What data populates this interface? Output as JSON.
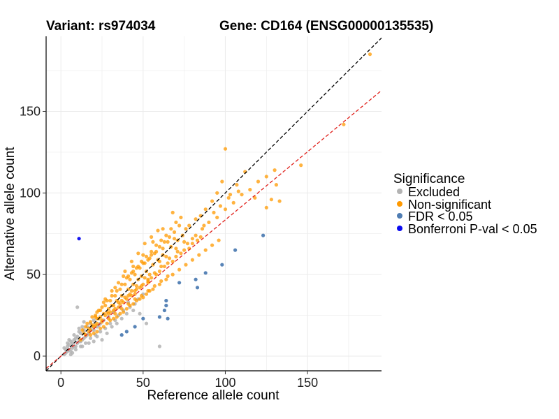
{
  "chart_data": {
    "type": "scatter",
    "title_left": "Variant: rs974034",
    "title_right": "Gene: CD164 (ENSG00000135535)",
    "xlabel": "Reference allele count",
    "ylabel": "Alternative allele count",
    "xlim": [
      -9,
      195
    ],
    "ylim": [
      -9,
      196
    ],
    "xticks": [
      0,
      50,
      100,
      150
    ],
    "yticks": [
      0,
      50,
      100,
      150
    ],
    "grid": true,
    "reference_lines": [
      {
        "name": "identity",
        "slope": 1.0,
        "intercept": 0,
        "color": "#000000",
        "dash": true
      },
      {
        "name": "fit",
        "slope": 0.835,
        "intercept": 0,
        "color": "#e0201b",
        "dash": true
      }
    ],
    "legend": {
      "title": "Significance",
      "position": "right",
      "items": [
        {
          "label": "Excluded",
          "color": "#b3b3b3"
        },
        {
          "label": "Non-significant",
          "color": "#ff9900"
        },
        {
          "label": "FDR < 0.05",
          "color": "#4f7db3"
        },
        {
          "label": "Bonferroni P-val < 0.05",
          "color": "#0a0af0"
        }
      ]
    },
    "series": [
      {
        "name": "Excluded",
        "color": "#b3b3b3",
        "points": [
          [
            2,
            1
          ],
          [
            3,
            2
          ],
          [
            4,
            3
          ],
          [
            5,
            4
          ],
          [
            6,
            3
          ],
          [
            7,
            5
          ],
          [
            8,
            6
          ],
          [
            9,
            6
          ],
          [
            10,
            8
          ],
          [
            11,
            9
          ],
          [
            12,
            9
          ],
          [
            13,
            10
          ],
          [
            14,
            11
          ],
          [
            15,
            12
          ],
          [
            16,
            13
          ],
          [
            17,
            14
          ],
          [
            18,
            16
          ],
          [
            20,
            16
          ],
          [
            22,
            18
          ],
          [
            24,
            20
          ],
          [
            3,
            4
          ],
          [
            5,
            7
          ],
          [
            7,
            8
          ],
          [
            8,
            10
          ],
          [
            10,
            12
          ],
          [
            12,
            14
          ],
          [
            14,
            16
          ],
          [
            16,
            18
          ],
          [
            18,
            20
          ],
          [
            20,
            22
          ],
          [
            6,
            1
          ],
          [
            9,
            4
          ],
          [
            12,
            6
          ],
          [
            15,
            8
          ],
          [
            18,
            11
          ],
          [
            21,
            13
          ],
          [
            24,
            15
          ],
          [
            27,
            17
          ],
          [
            30,
            20
          ],
          [
            33,
            22
          ],
          [
            4,
            6
          ],
          [
            6,
            9
          ],
          [
            9,
            11
          ],
          [
            11,
            15
          ],
          [
            13,
            18
          ],
          [
            2,
            5
          ],
          [
            5,
            10
          ],
          [
            8,
            13
          ],
          [
            11,
            17
          ],
          [
            14,
            21
          ],
          [
            4,
            8
          ],
          [
            19,
            18
          ],
          [
            23,
            19
          ],
          [
            26,
            22
          ],
          [
            29,
            24
          ],
          [
            32,
            27
          ],
          [
            35,
            25
          ],
          [
            38,
            28
          ],
          [
            42,
            30
          ],
          [
            45,
            32
          ],
          [
            10,
            30
          ],
          [
            60,
            6
          ],
          [
            52,
            20
          ],
          [
            48,
            26
          ],
          [
            28,
            14
          ],
          [
            31,
            18
          ],
          [
            34,
            20
          ],
          [
            37,
            23
          ],
          [
            40,
            26
          ],
          [
            25,
            10
          ],
          [
            17,
            8
          ],
          [
            7,
            2
          ],
          [
            13,
            6
          ],
          [
            20,
            9
          ],
          [
            22,
            12
          ],
          [
            36,
            30
          ],
          [
            41,
            33
          ],
          [
            44,
            28
          ],
          [
            47,
            35
          ],
          [
            50,
            38
          ]
        ]
      },
      {
        "name": "Non-significant",
        "color": "#ff9900",
        "points": [
          [
            12,
            10
          ],
          [
            15,
            13
          ],
          [
            18,
            16
          ],
          [
            20,
            18
          ],
          [
            22,
            20
          ],
          [
            25,
            22
          ],
          [
            27,
            25
          ],
          [
            30,
            27
          ],
          [
            32,
            28
          ],
          [
            35,
            30
          ],
          [
            38,
            33
          ],
          [
            40,
            35
          ],
          [
            43,
            37
          ],
          [
            45,
            40
          ],
          [
            48,
            42
          ],
          [
            50,
            44
          ],
          [
            53,
            46
          ],
          [
            55,
            48
          ],
          [
            58,
            50
          ],
          [
            60,
            52
          ],
          [
            63,
            55
          ],
          [
            65,
            57
          ],
          [
            68,
            58
          ],
          [
            70,
            61
          ],
          [
            73,
            63
          ],
          [
            75,
            65
          ],
          [
            78,
            66
          ],
          [
            80,
            69
          ],
          [
            83,
            71
          ],
          [
            85,
            73
          ],
          [
            15,
            18
          ],
          [
            18,
            21
          ],
          [
            21,
            24
          ],
          [
            24,
            28
          ],
          [
            27,
            31
          ],
          [
            30,
            34
          ],
          [
            33,
            37
          ],
          [
            36,
            41
          ],
          [
            39,
            44
          ],
          [
            42,
            47
          ],
          [
            45,
            50
          ],
          [
            48,
            54
          ],
          [
            51,
            57
          ],
          [
            54,
            60
          ],
          [
            57,
            63
          ],
          [
            60,
            67
          ],
          [
            63,
            70
          ],
          [
            66,
            73
          ],
          [
            69,
            76
          ],
          [
            72,
            80
          ],
          [
            20,
            14
          ],
          [
            24,
            17
          ],
          [
            28,
            20
          ],
          [
            32,
            23
          ],
          [
            36,
            26
          ],
          [
            40,
            29
          ],
          [
            44,
            32
          ],
          [
            48,
            35
          ],
          [
            52,
            38
          ],
          [
            56,
            41
          ],
          [
            60,
            44
          ],
          [
            64,
            47
          ],
          [
            68,
            50
          ],
          [
            72,
            53
          ],
          [
            76,
            56
          ],
          [
            80,
            59
          ],
          [
            84,
            62
          ],
          [
            88,
            65
          ],
          [
            92,
            68
          ],
          [
            96,
            71
          ],
          [
            14,
            14
          ],
          [
            17,
            17
          ],
          [
            19,
            19
          ],
          [
            23,
            23
          ],
          [
            26,
            26
          ],
          [
            29,
            29
          ],
          [
            31,
            31
          ],
          [
            34,
            34
          ],
          [
            37,
            37
          ],
          [
            41,
            41
          ],
          [
            44,
            44
          ],
          [
            47,
            47
          ],
          [
            49,
            49
          ],
          [
            52,
            52
          ],
          [
            56,
            56
          ],
          [
            59,
            59
          ],
          [
            62,
            62
          ],
          [
            67,
            67
          ],
          [
            71,
            71
          ],
          [
            74,
            74
          ],
          [
            16,
            20
          ],
          [
            19,
            24
          ],
          [
            22,
            27
          ],
          [
            25,
            30
          ],
          [
            28,
            34
          ],
          [
            31,
            37
          ],
          [
            34,
            40
          ],
          [
            37,
            44
          ],
          [
            40,
            48
          ],
          [
            43,
            51
          ],
          [
            46,
            54
          ],
          [
            49,
            58
          ],
          [
            52,
            61
          ],
          [
            55,
            64
          ],
          [
            58,
            68
          ],
          [
            61,
            71
          ],
          [
            64,
            74
          ],
          [
            67,
            78
          ],
          [
            70,
            82
          ],
          [
            73,
            85
          ],
          [
            13,
            16
          ],
          [
            21,
            25
          ],
          [
            26,
            33
          ],
          [
            33,
            42
          ],
          [
            38,
            49
          ],
          [
            44,
            55
          ],
          [
            50,
            62
          ],
          [
            56,
            70
          ],
          [
            62,
            78
          ],
          [
            68,
            88
          ],
          [
            36,
            32
          ],
          [
            42,
            38
          ],
          [
            46,
            41
          ],
          [
            53,
            47
          ],
          [
            57,
            51
          ],
          [
            61,
            55
          ],
          [
            66,
            60
          ],
          [
            71,
            64
          ],
          [
            77,
            69
          ],
          [
            82,
            74
          ],
          [
            86,
            78
          ],
          [
            90,
            82
          ],
          [
            95,
            85
          ],
          [
            100,
            90
          ],
          [
            105,
            94
          ],
          [
            110,
            99
          ],
          [
            115,
            102
          ],
          [
            120,
            107
          ],
          [
            125,
            110
          ],
          [
            130,
            114
          ],
          [
            18,
            13
          ],
          [
            22,
            15
          ],
          [
            26,
            18
          ],
          [
            30,
            22
          ],
          [
            34,
            24
          ],
          [
            38,
            27
          ],
          [
            42,
            31
          ],
          [
            46,
            34
          ],
          [
            50,
            36
          ],
          [
            54,
            40
          ],
          [
            23,
            28
          ],
          [
            27,
            35
          ],
          [
            31,
            40
          ],
          [
            35,
            45
          ],
          [
            39,
            52
          ],
          [
            43,
            58
          ],
          [
            47,
            63
          ],
          [
            51,
            69
          ],
          [
            55,
            73
          ],
          [
            59,
            77
          ],
          [
            29,
            23
          ],
          [
            33,
            26
          ],
          [
            37,
            29
          ],
          [
            41,
            32
          ],
          [
            45,
            35
          ],
          [
            49,
            37
          ],
          [
            53,
            40
          ],
          [
            57,
            43
          ],
          [
            61,
            46
          ],
          [
            65,
            49
          ],
          [
            188,
            185
          ],
          [
            172,
            142
          ],
          [
            146,
            117
          ],
          [
            131,
            105
          ],
          [
            128,
            96
          ],
          [
            125,
            91
          ],
          [
            133,
            95
          ],
          [
            118,
            97
          ],
          [
            100,
            127
          ],
          [
            103,
            99
          ],
          [
            112,
            113
          ],
          [
            107,
            105
          ],
          [
            95,
            100
          ],
          [
            98,
            107
          ],
          [
            92,
            95
          ],
          [
            88,
            90
          ],
          [
            85,
            86
          ],
          [
            82,
            84
          ],
          [
            78,
            80
          ],
          [
            76,
            78
          ],
          [
            69,
            72
          ],
          [
            65,
            70
          ],
          [
            62,
            66
          ],
          [
            58,
            64
          ],
          [
            55,
            62
          ],
          [
            53,
            59
          ],
          [
            50,
            57
          ],
          [
            47,
            55
          ],
          [
            44,
            52
          ],
          [
            41,
            49
          ],
          [
            22,
            23
          ],
          [
            24,
            24
          ],
          [
            28,
            27
          ],
          [
            32,
            31
          ],
          [
            35,
            33
          ],
          [
            39,
            36
          ],
          [
            43,
            40
          ],
          [
            46,
            43
          ],
          [
            51,
            48
          ],
          [
            54,
            50
          ],
          [
            17,
            15
          ],
          [
            21,
            19
          ],
          [
            25,
            21
          ],
          [
            29,
            26
          ],
          [
            33,
            29
          ],
          [
            37,
            34
          ],
          [
            41,
            37
          ],
          [
            45,
            38
          ],
          [
            49,
            43
          ],
          [
            53,
            45
          ],
          [
            60,
            58
          ],
          [
            64,
            61
          ],
          [
            70,
            66
          ],
          [
            75,
            70
          ],
          [
            80,
            72
          ],
          [
            87,
            80
          ],
          [
            93,
            88
          ],
          [
            97,
            92
          ],
          [
            102,
            97
          ],
          [
            108,
            101
          ]
        ]
      },
      {
        "name": "FDR < 0.05",
        "color": "#4f7db3",
        "points": [
          [
            123,
            74
          ],
          [
            106,
            65
          ],
          [
            98,
            56
          ],
          [
            88,
            51
          ],
          [
            82,
            47
          ],
          [
            83,
            42
          ],
          [
            72,
            45
          ],
          [
            64,
            34
          ],
          [
            64,
            31
          ],
          [
            63,
            28
          ],
          [
            60,
            24
          ],
          [
            65,
            23
          ],
          [
            45,
            18
          ],
          [
            40,
            15
          ],
          [
            37,
            13
          ],
          [
            50,
            23
          ]
        ]
      },
      {
        "name": "Bonferroni P-val < 0.05",
        "color": "#0a0af0",
        "points": [
          [
            11,
            72
          ]
        ]
      }
    ]
  }
}
